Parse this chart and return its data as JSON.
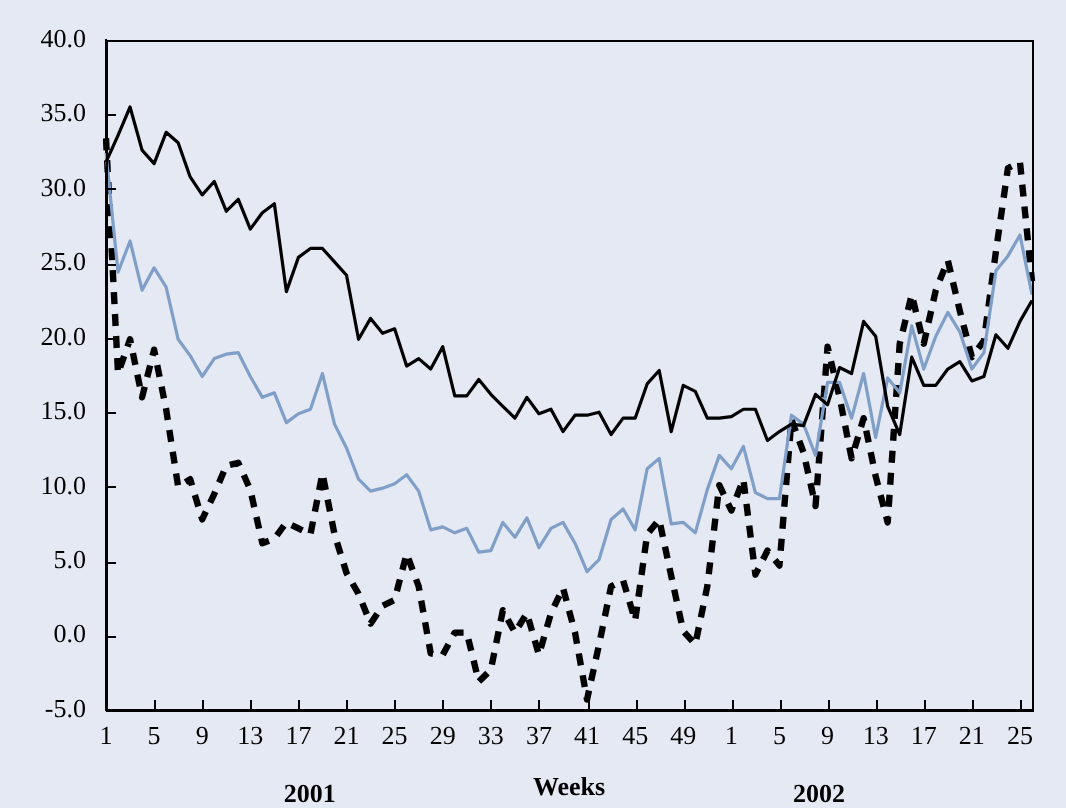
{
  "chart_data": {
    "type": "line",
    "xlabel": "Weeks",
    "annotations": [
      "2001",
      "2002"
    ],
    "categories": [
      "1",
      null,
      null,
      null,
      "5",
      null,
      null,
      null,
      "9",
      null,
      null,
      null,
      "13",
      null,
      null,
      null,
      "17",
      null,
      null,
      null,
      "21",
      null,
      null,
      null,
      "25",
      null,
      null,
      null,
      "29",
      null,
      null,
      null,
      "33",
      null,
      null,
      null,
      "37",
      null,
      null,
      null,
      "41",
      null,
      null,
      null,
      "45",
      null,
      null,
      null,
      "49",
      null,
      null,
      null,
      "1",
      null,
      null,
      null,
      "5",
      null,
      null,
      null,
      "9",
      null,
      null,
      null,
      "13",
      null,
      null,
      null,
      "17",
      null,
      null,
      null,
      "21",
      null,
      null,
      null,
      "25",
      null
    ],
    "series": [
      {
        "color": "#000000",
        "line_style": "solid",
        "values": [
          31.8,
          33.6,
          35.5,
          32.6,
          31.7,
          33.8,
          33.1,
          30.8,
          29.6,
          30.5,
          28.5,
          29.3,
          27.3,
          28.4,
          29.0,
          23.1,
          25.4,
          26.0,
          26.0,
          25.1,
          24.2,
          19.9,
          21.3,
          20.3,
          20.6,
          18.1,
          18.6,
          17.9,
          19.4,
          16.1,
          16.1,
          17.2,
          16.2,
          15.4,
          14.6,
          16.0,
          14.9,
          15.2,
          13.7,
          14.8,
          14.8,
          15.0,
          13.5,
          14.6,
          14.6,
          16.9,
          17.8,
          13.7,
          16.8,
          16.4,
          14.6,
          14.6,
          14.7,
          15.2,
          15.2,
          13.1,
          13.7,
          14.2,
          14.1,
          16.2,
          15.5,
          18.0,
          17.6,
          21.1,
          20.1,
          15.4,
          13.5,
          18.7,
          16.8,
          16.8,
          17.9,
          18.4,
          17.1,
          17.4,
          20.2,
          19.3,
          21.1,
          22.5
        ]
      },
      {
        "color": "#7f9fc8",
        "line_style": "solid",
        "values": [
          32.4,
          24.4,
          26.5,
          23.2,
          24.7,
          23.4,
          19.9,
          18.8,
          17.4,
          18.6,
          18.9,
          19.0,
          17.4,
          16.0,
          16.3,
          14.3,
          14.9,
          15.2,
          17.6,
          14.2,
          12.6,
          10.5,
          9.7,
          9.9,
          10.2,
          10.8,
          9.7,
          7.1,
          7.3,
          6.9,
          7.2,
          5.6,
          5.7,
          7.6,
          6.6,
          7.9,
          5.9,
          7.2,
          7.6,
          6.2,
          4.3,
          5.1,
          7.8,
          8.5,
          7.1,
          11.2,
          11.9,
          7.5,
          7.6,
          6.9,
          9.8,
          12.1,
          11.2,
          12.7,
          9.6,
          9.2,
          9.2,
          14.8,
          14.2,
          12.1,
          17.0,
          17.0,
          14.6,
          17.6,
          13.3,
          17.3,
          16.3,
          20.8,
          17.9,
          20.1,
          21.7,
          20.4,
          17.9,
          19.0,
          24.5,
          25.5,
          26.9,
          22.9
        ]
      },
      {
        "color": "#000000",
        "line_style": "dashed",
        "values": [
          33.4,
          17.6,
          19.9,
          16.0,
          19.2,
          15.2,
          10.0,
          10.5,
          7.8,
          9.5,
          11.4,
          11.6,
          9.8,
          6.2,
          6.5,
          7.6,
          7.2,
          6.8,
          10.9,
          6.8,
          4.2,
          2.8,
          0.8,
          2.0,
          2.4,
          5.5,
          3.3,
          -1.2,
          -1.3,
          0.2,
          0.2,
          -3.1,
          -2.3,
          1.7,
          0.2,
          1.5,
          -1.3,
          1.5,
          3.2,
          0.2,
          -4.3,
          -0.6,
          3.3,
          3.7,
          1.0,
          6.8,
          7.8,
          4.0,
          0.3,
          -0.6,
          3.3,
          10.1,
          8.4,
          10.5,
          4.1,
          5.7,
          4.7,
          14.5,
          12.3,
          8.7,
          19.4,
          16.0,
          11.9,
          14.6,
          10.7,
          7.6,
          19.6,
          22.9,
          19.6,
          23.2,
          25.2,
          21.8,
          18.7,
          19.8,
          25.8,
          31.4,
          31.8,
          23.8
        ]
      }
    ],
    "ylim": [
      -5,
      40
    ],
    "yticks": [
      {
        "value": -5,
        "label": "-5.0"
      },
      {
        "value": 0,
        "label": "0.0"
      },
      {
        "value": 5,
        "label": "5.0"
      },
      {
        "value": 10,
        "label": "10.0"
      },
      {
        "value": 15,
        "label": "15.0"
      },
      {
        "value": 20,
        "label": "20.0"
      },
      {
        "value": 25,
        "label": "25.0"
      },
      {
        "value": 30,
        "label": "30.0"
      },
      {
        "value": 35,
        "label": "35.0"
      },
      {
        "value": 40,
        "label": "40.0"
      }
    ],
    "grid": false,
    "legend": false,
    "marker": "none"
  }
}
